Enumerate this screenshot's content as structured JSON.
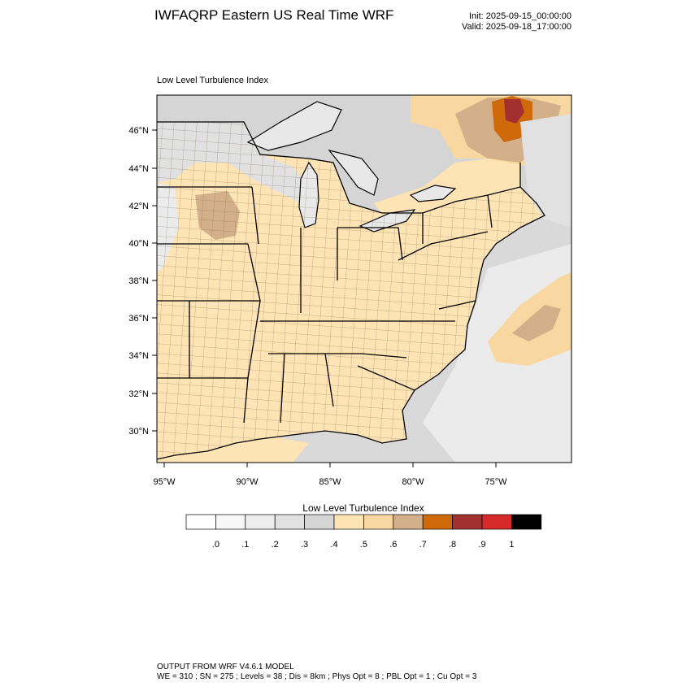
{
  "header": {
    "title": "IWFAQRP Eastern US Real Time WRF",
    "init": "Init: 2025-09-15_00:00:00",
    "valid": "Valid: 2025-09-18_17:00:00"
  },
  "map": {
    "title": "Low Level Turbulence Index",
    "lat_labels": [
      "46°N",
      "44°N",
      "42°N",
      "40°N",
      "38°N",
      "36°N",
      "34°N",
      "32°N",
      "30°N"
    ],
    "lon_labels": [
      "95°W",
      "90°W",
      "85°W",
      "80°W",
      "75°W"
    ],
    "colors": {
      "ocean_gray": "#d9d9d9",
      "light_gray": "#ebebeb",
      "lake_gray": "#e8e8e8",
      "tan_light": "#fee4b4",
      "tan_mid": "#f9d7a0",
      "tan_dark": "#d4b08a",
      "orange": "#cf6a0a",
      "dark_red": "#a33030"
    }
  },
  "colorbar": {
    "title": "Low Level Turbulence Index",
    "labels": [
      ".0",
      ".1",
      ".2",
      ".3",
      ".4",
      ".5",
      ".6",
      ".7",
      ".8",
      ".9",
      "1"
    ],
    "colors": [
      "#ffffff",
      "#f7f7f7",
      "#eeeeee",
      "#e1e1e1",
      "#d5d5d5",
      "#fee4b4",
      "#f9d7a0",
      "#d4b08a",
      "#cf6a0a",
      "#a33030",
      "#d62a2a",
      "#000000"
    ]
  },
  "footer": {
    "line1": "OUTPUT FROM WRF V4.6.1 MODEL",
    "line2": "WE = 310 ; SN = 275 ; Levels = 38 ; Dis = 8km ; Phys Opt = 8 ; PBL Opt = 1 ; Cu Opt = 3"
  }
}
